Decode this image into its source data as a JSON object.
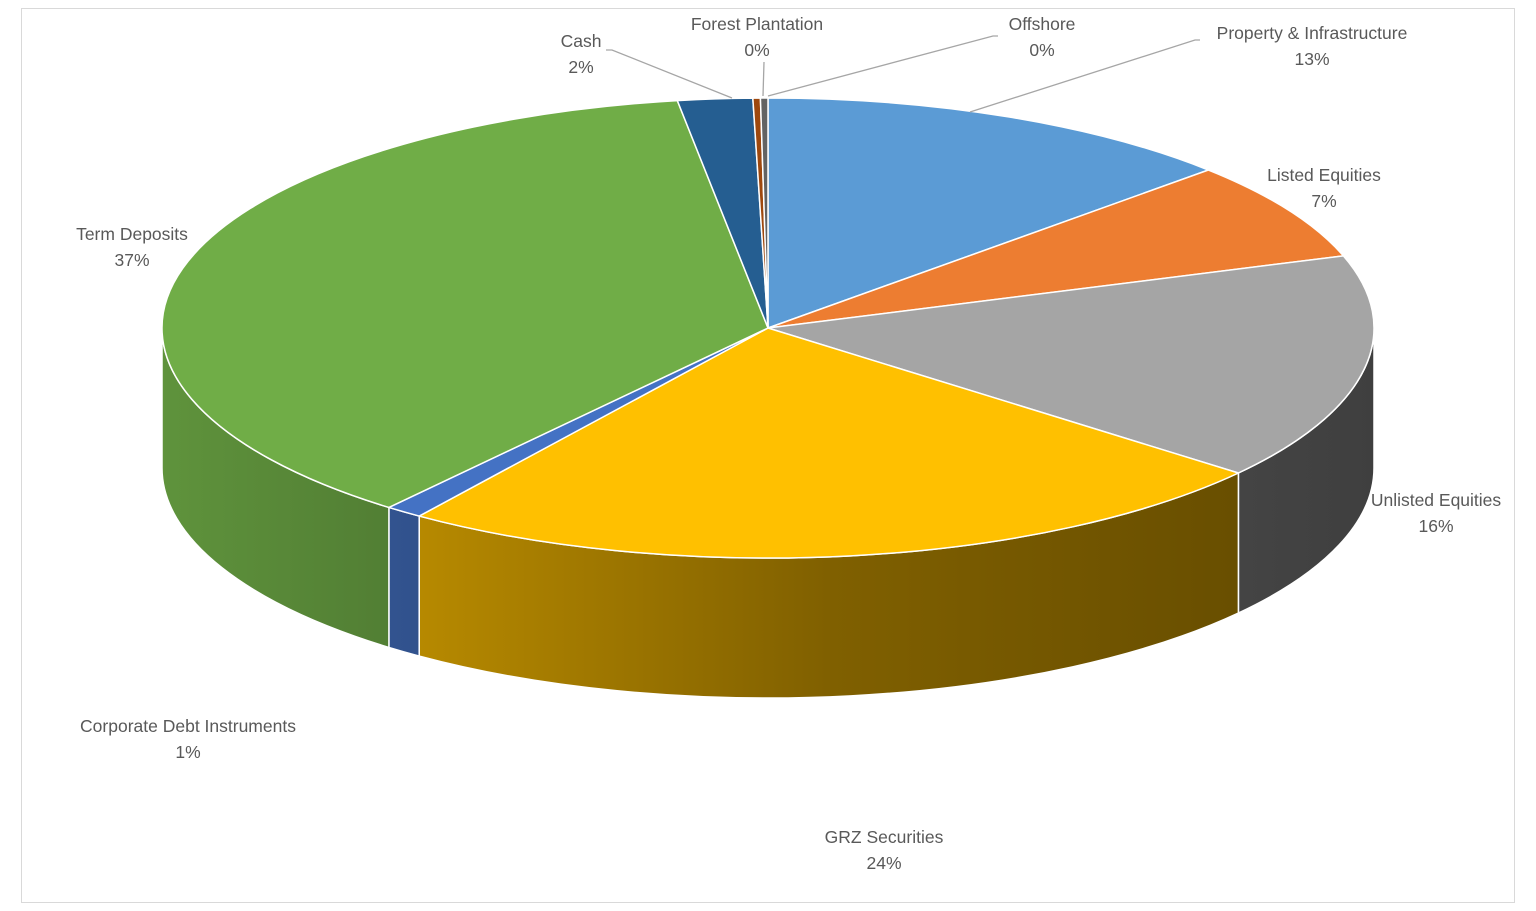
{
  "chart_data": {
    "type": "pie",
    "title": "",
    "style": "3d",
    "slices": [
      {
        "name": "Property & Infrastructure",
        "value": 13,
        "display": "13%",
        "color": "#5b9bd5"
      },
      {
        "name": "Listed Equities",
        "value": 7,
        "display": "7%",
        "color": "#ed7d31"
      },
      {
        "name": "Unlisted Equities",
        "value": 16,
        "display": "16%",
        "color": "#a5a5a5"
      },
      {
        "name": "GRZ Securities",
        "value": 24,
        "display": "24%",
        "color": "#ffc000"
      },
      {
        "name": "Corporate Debt Instruments",
        "value": 1,
        "display": "1%",
        "color": "#4472c4"
      },
      {
        "name": "Term Deposits",
        "value": 37,
        "display": "37%",
        "color": "#70ad47"
      },
      {
        "name": "Cash",
        "value": 2,
        "display": "2%",
        "color": "#255e91"
      },
      {
        "name": "Forest Plantation",
        "value": 0.2,
        "display": "0%",
        "color": "#9e480e"
      },
      {
        "name": "Offshore",
        "value": 0.2,
        "display": "0%",
        "color": "#636363"
      }
    ],
    "legend": "none",
    "data_labels": "outside"
  }
}
